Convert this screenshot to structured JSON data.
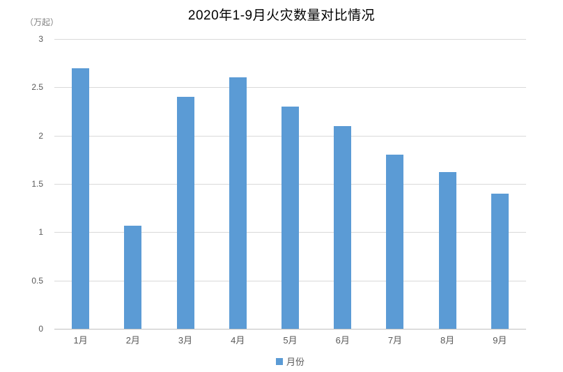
{
  "chart_data": {
    "type": "bar",
    "title": "2020年1-9月火灾数量对比情况",
    "unit_label": "（万起）",
    "legend": "月份",
    "legend_position": "bottom",
    "categories": [
      "1月",
      "2月",
      "3月",
      "4月",
      "5月",
      "6月",
      "7月",
      "8月",
      "9月"
    ],
    "values": [
      2.7,
      1.07,
      2.4,
      2.6,
      2.3,
      2.1,
      1.8,
      1.62,
      1.4
    ],
    "xlabel": "",
    "ylabel": "（万起）",
    "ylim": [
      0,
      3
    ],
    "yticks": [
      0,
      0.5,
      1,
      1.5,
      2,
      2.5,
      3
    ],
    "grid": true,
    "colors": {
      "bar": "#5B9BD5",
      "gridline": "#D9D9D9",
      "axis_line": "#BFBFBF",
      "tick_text": "#595959",
      "unit_text": "#7F7F7F",
      "title_text": "#000000"
    }
  }
}
